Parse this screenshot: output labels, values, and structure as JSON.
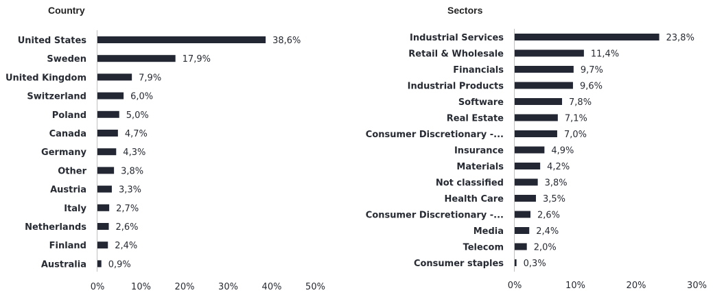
{
  "chart_data": [
    {
      "type": "bar",
      "orientation": "horizontal",
      "title": "Country",
      "categories": [
        "United States",
        "Sweden",
        "United Kingdom",
        "Switzerland",
        "Poland",
        "Canada",
        "Germany",
        "Other",
        "Austria",
        "Italy",
        "Netherlands",
        "Finland",
        "Australia"
      ],
      "values": [
        38.6,
        17.9,
        7.9,
        6.0,
        5.0,
        4.7,
        4.3,
        3.8,
        3.3,
        2.7,
        2.6,
        2.4,
        0.9
      ],
      "value_labels": [
        "38,6%",
        "17,9%",
        "7,9%",
        "6,0%",
        "5,0%",
        "4,7%",
        "4,3%",
        "3,8%",
        "3,3%",
        "2,7%",
        "2,6%",
        "2,4%",
        "0,9%"
      ],
      "xlim": [
        0,
        50
      ],
      "x_ticks": [
        "0%",
        "10%",
        "20%",
        "30%",
        "40%",
        "50%"
      ],
      "bar_color": "#232733",
      "grid": false
    },
    {
      "type": "bar",
      "orientation": "horizontal",
      "title": "Sectors",
      "categories": [
        "Industrial Services",
        "Retail & Wholesale",
        "Financials",
        "Industrial Products",
        "Software",
        "Real Estate",
        "Consumer Discretionary -...",
        "Insurance",
        "Materials",
        "Not classified",
        "Health Care",
        "Consumer Discretionary -...",
        "Media",
        "Telecom",
        "Consumer staples"
      ],
      "values": [
        23.8,
        11.4,
        9.7,
        9.6,
        7.8,
        7.1,
        7.0,
        4.9,
        4.2,
        3.8,
        3.5,
        2.6,
        2.4,
        2.0,
        0.3
      ],
      "value_labels": [
        "23,8%",
        "11,4%",
        "9,7%",
        "9,6%",
        "7,8%",
        "7,1%",
        "7,0%",
        "4,9%",
        "4,2%",
        "3,8%",
        "3,5%",
        "2,6%",
        "2,4%",
        "2,0%",
        "0,3%"
      ],
      "xlim": [
        0,
        30
      ],
      "x_ticks": [
        "0%",
        "10%",
        "20%",
        "30%"
      ],
      "bar_color": "#232733",
      "grid": false
    }
  ]
}
